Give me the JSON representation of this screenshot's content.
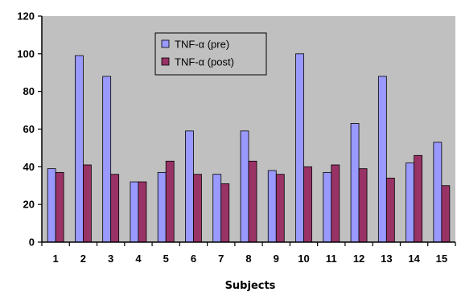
{
  "chart_data": {
    "type": "bar",
    "categories": [
      "1",
      "2",
      "3",
      "4",
      "5",
      "6",
      "7",
      "8",
      "9",
      "10",
      "11",
      "12",
      "13",
      "14",
      "15"
    ],
    "series": [
      {
        "name": "TNF-α (pre)",
        "color": "#9999ff",
        "values": [
          39,
          99,
          88,
          32,
          37,
          59,
          36,
          59,
          38,
          100,
          37,
          63,
          88,
          42,
          53
        ]
      },
      {
        "name": "TNF-α (post)",
        "color": "#993366",
        "values": [
          37,
          41,
          36,
          32,
          43,
          36,
          31,
          43,
          36,
          40,
          41,
          39,
          34,
          46,
          30
        ]
      }
    ],
    "title": "",
    "xlabel": "Subjects",
    "ylabel": "",
    "ylim": [
      0,
      120
    ],
    "yticks": [
      0,
      20,
      40,
      60,
      80,
      100,
      120
    ],
    "grid": false,
    "legend_position": "top-center",
    "plot_background": "#c0c0c0"
  }
}
